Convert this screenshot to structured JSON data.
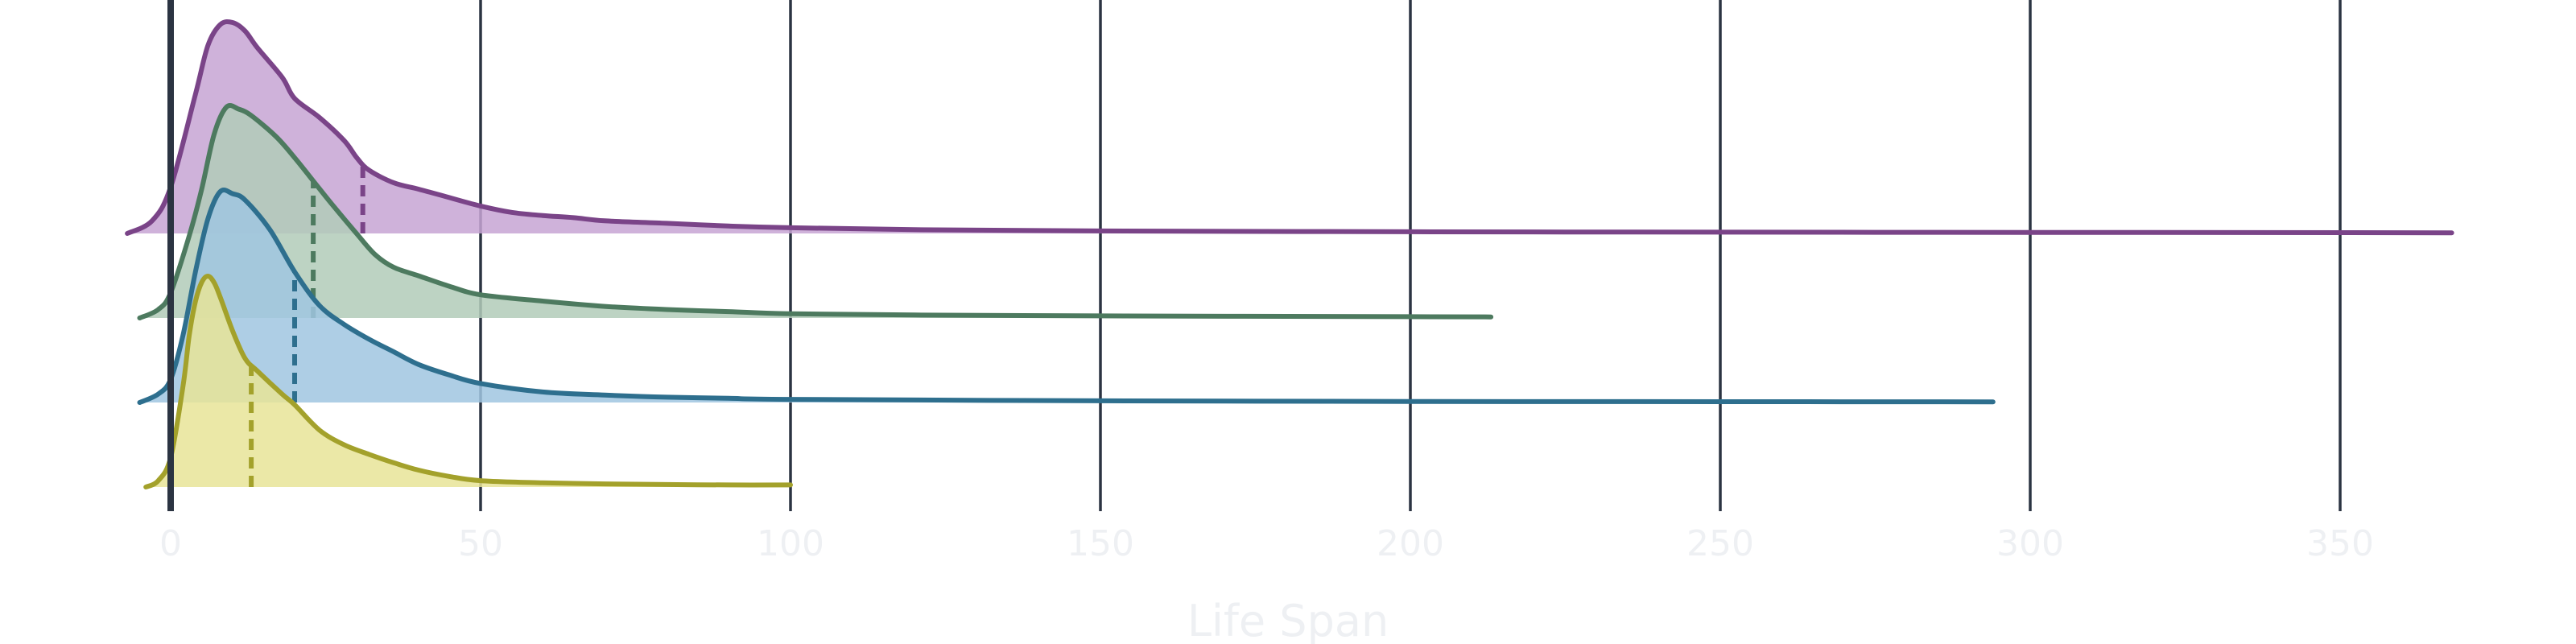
{
  "chart_data": {
    "type": "ridgeline",
    "title": "",
    "xlabel": "Life Span",
    "ylabel": "",
    "xlim": [
      -7,
      375
    ],
    "x_ticks": [
      0,
      50,
      100,
      150,
      200,
      250,
      300,
      350
    ],
    "x_tick_labels": [
      "0",
      "50",
      "100",
      "150",
      "200",
      "250",
      "300",
      "350"
    ],
    "grid": "vertical",
    "legend": "none",
    "series": [
      {
        "color": "#7a4488",
        "fill": "#c7a5d4",
        "median": 31,
        "x": [
          -7,
          -3,
          0,
          4,
          6,
          8,
          10,
          12,
          14,
          18,
          20,
          24,
          28,
          30,
          32,
          36,
          40,
          45,
          50,
          55,
          60,
          65,
          70,
          80,
          90,
          100,
          120,
          150,
          200,
          250,
          300,
          350,
          368
        ],
        "density": [
          0.0,
          0.06,
          0.22,
          0.66,
          0.89,
          0.99,
          1.0,
          0.96,
          0.88,
          0.74,
          0.64,
          0.55,
          0.44,
          0.36,
          0.3,
          0.24,
          0.21,
          0.17,
          0.13,
          0.1,
          0.085,
          0.075,
          0.06,
          0.048,
          0.035,
          0.027,
          0.018,
          0.012,
          0.008,
          0.006,
          0.005,
          0.004,
          0.003
        ]
      },
      {
        "color": "#4d7a5f",
        "fill": "#b2cbb9",
        "median": 23,
        "x": [
          -5,
          -2,
          0,
          3,
          5,
          7,
          9,
          11,
          13,
          17,
          20,
          23,
          26,
          30,
          33,
          36,
          40,
          45,
          50,
          60,
          70,
          80,
          90,
          100,
          120,
          150,
          200,
          213
        ],
        "density": [
          0.0,
          0.04,
          0.12,
          0.39,
          0.61,
          0.87,
          1.0,
          0.99,
          0.96,
          0.86,
          0.76,
          0.65,
          0.54,
          0.4,
          0.3,
          0.24,
          0.2,
          0.15,
          0.11,
          0.08,
          0.055,
          0.04,
          0.03,
          0.02,
          0.014,
          0.01,
          0.006,
          0.005
        ]
      },
      {
        "color": "#2e6f8e",
        "fill": "#a0c6e0",
        "median": 20,
        "x": [
          -5,
          -2,
          0,
          2,
          4,
          6,
          8,
          10,
          12,
          16,
          20,
          24,
          28,
          32,
          36,
          40,
          45,
          50,
          60,
          70,
          80,
          90,
          100,
          150,
          200,
          250,
          294
        ],
        "density": [
          0.0,
          0.04,
          0.11,
          0.32,
          0.62,
          0.87,
          1.0,
          0.99,
          0.96,
          0.82,
          0.62,
          0.46,
          0.37,
          0.3,
          0.24,
          0.18,
          0.13,
          0.09,
          0.05,
          0.035,
          0.025,
          0.02,
          0.015,
          0.008,
          0.005,
          0.004,
          0.003
        ]
      },
      {
        "color": "#a3a12b",
        "fill": "#e7e498",
        "median": 13,
        "x": [
          -4,
          -2,
          0,
          2,
          3,
          4,
          5,
          6,
          7,
          8,
          10,
          12,
          14,
          18,
          20,
          24,
          28,
          32,
          36,
          40,
          45,
          50,
          60,
          70,
          80,
          90,
          100
        ],
        "density": [
          0.0,
          0.03,
          0.14,
          0.48,
          0.72,
          0.88,
          0.97,
          1.0,
          0.97,
          0.9,
          0.74,
          0.61,
          0.55,
          0.44,
          0.39,
          0.27,
          0.2,
          0.155,
          0.115,
          0.08,
          0.05,
          0.03,
          0.02,
          0.015,
          0.012,
          0.01,
          0.01
        ]
      }
    ]
  }
}
